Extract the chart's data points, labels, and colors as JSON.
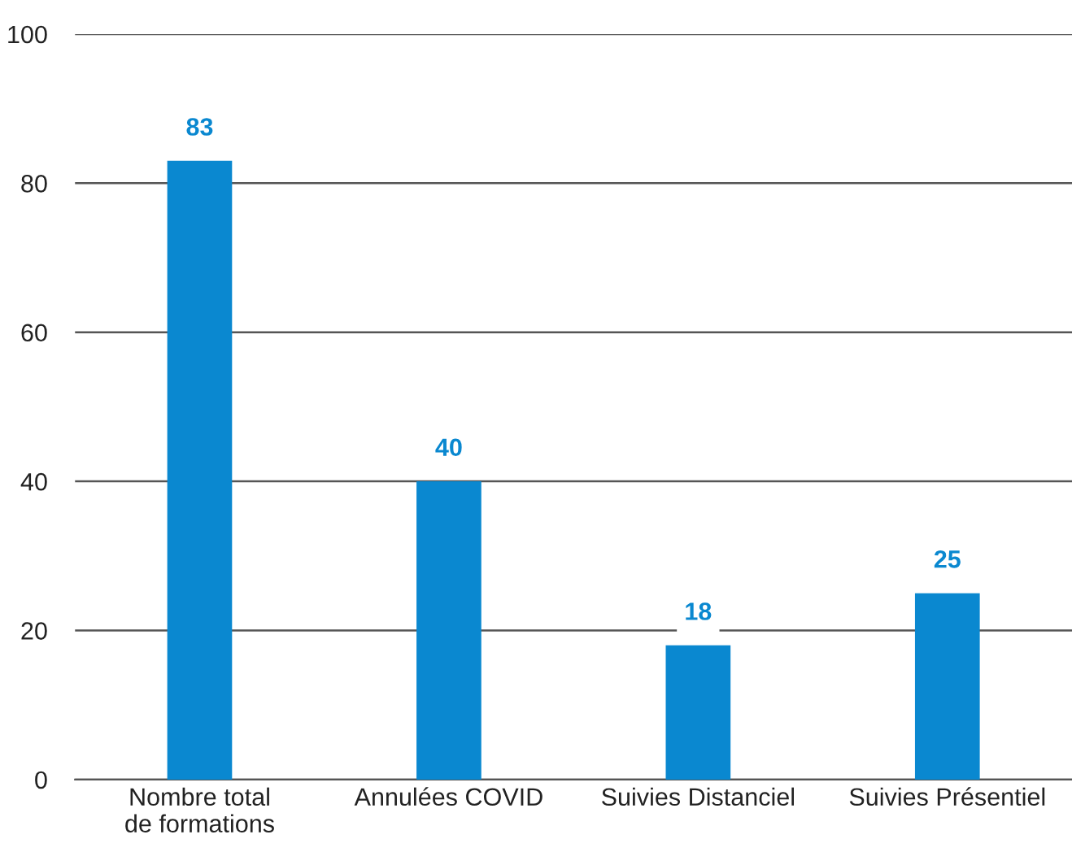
{
  "chart_data": {
    "type": "bar",
    "categories": [
      "Nombre total\nde formations",
      "Annulées COVID",
      "Suivies Distanciel",
      "Suivies Présentiel"
    ],
    "values": [
      83,
      40,
      18,
      25
    ],
    "color": "#0a88d0",
    "ylim": [
      0,
      100
    ],
    "yticks": [
      0,
      20,
      40,
      60,
      80,
      100
    ],
    "grid": "y",
    "data_labels": true
  }
}
